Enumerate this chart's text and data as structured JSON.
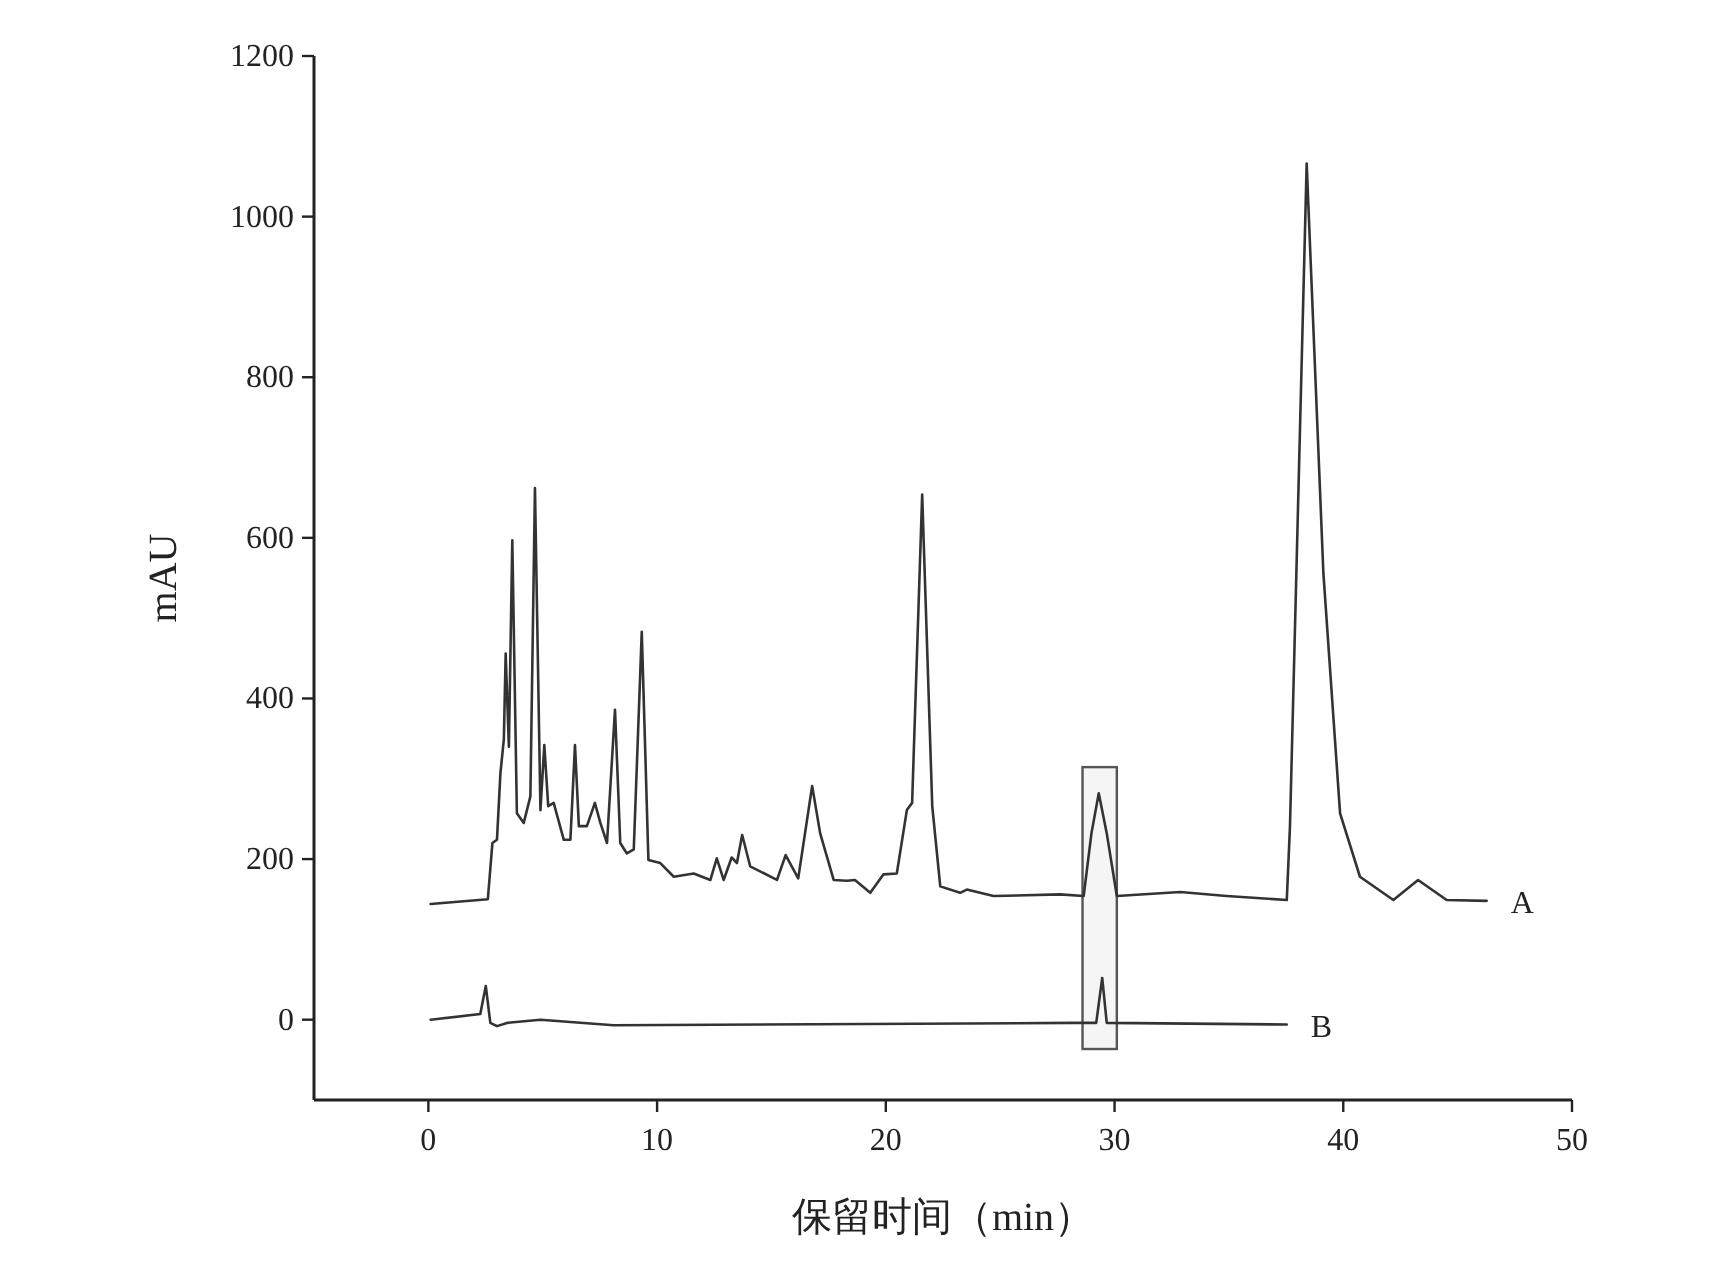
{
  "chart_data": {
    "type": "line",
    "xlabel": "保留时间（min）",
    "ylabel": "mAU",
    "xlim": [
      -5,
      50
    ],
    "ylim": [
      -100,
      1200
    ],
    "xticks": [
      0,
      10,
      20,
      30,
      40,
      50
    ],
    "yticks": [
      0,
      200,
      400,
      600,
      800,
      1000,
      1200
    ],
    "grid": false,
    "marker": "none",
    "line_style": "solid",
    "bands": [
      {
        "axis": "x",
        "from": 28.6,
        "to": 30.1,
        "color": "#555555"
      }
    ],
    "series": [
      {
        "name": "A",
        "color": "#333333",
        "x": [
          0.1,
          2.6,
          2.8,
          3.0,
          3.15,
          3.3,
          3.38,
          3.52,
          3.67,
          3.87,
          4.17,
          4.46,
          4.66,
          4.9,
          5.07,
          5.24,
          5.48,
          5.92,
          6.21,
          6.41,
          6.58,
          6.93,
          7.28,
          7.52,
          7.81,
          8.16,
          8.39,
          8.68,
          8.98,
          9.33,
          9.62,
          10.14,
          10.73,
          11.6,
          12.33,
          12.61,
          12.91,
          13.26,
          13.49,
          13.72,
          14.07,
          15.24,
          15.62,
          16.17,
          16.78,
          17.13,
          17.72,
          18.3,
          18.65,
          19.32,
          19.9,
          20.48,
          20.92,
          21.15,
          21.59,
          22.03,
          22.38,
          23.25,
          23.54,
          24.71,
          27.62,
          28.65,
          28.99,
          29.31,
          29.66,
          30.1,
          32.87,
          34.9,
          37.53,
          37.67,
          38.4,
          39.13,
          39.86,
          40.73,
          42.19,
          43.27,
          44.52,
          46.27
        ],
        "values": [
          144,
          150,
          220,
          224,
          307,
          349,
          456,
          340,
          597,
          257,
          245,
          278,
          662,
          261,
          342,
          266,
          270,
          224,
          224,
          342,
          241,
          241,
          270,
          245,
          220,
          386,
          220,
          207,
          212,
          483,
          199,
          195,
          178,
          182,
          174,
          201,
          174,
          202,
          195,
          230,
          191,
          174,
          205,
          176,
          291,
          232,
          174,
          173,
          174,
          158,
          181,
          182,
          261,
          270,
          654,
          266,
          166,
          158,
          162,
          154,
          156,
          154,
          232,
          282,
          232,
          154,
          159,
          154,
          149,
          241,
          1066,
          556,
          257,
          178,
          149,
          174,
          149,
          148
        ]
      },
      {
        "name": "B",
        "color": "#333333",
        "x": [
          0.1,
          2.27,
          2.51,
          2.71,
          3.0,
          3.44,
          4.9,
          8.1,
          28.2,
          29.2,
          29.46,
          29.66,
          37.53
        ],
        "values": [
          0,
          7,
          42,
          -4,
          -8,
          -4,
          0,
          -7,
          -4,
          -4,
          52,
          -4,
          -6
        ]
      }
    ]
  }
}
